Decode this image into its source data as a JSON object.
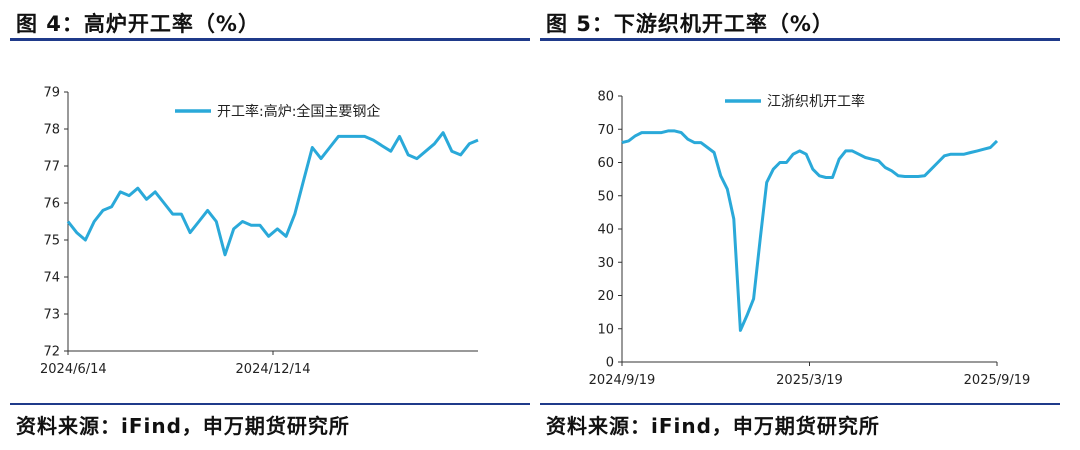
{
  "left": {
    "figure_title": "图 4：高炉开工率（%）",
    "source": "资料来源：iFind，申万期货研究所",
    "chart_data": {
      "type": "line",
      "title": "",
      "xlabel": "",
      "ylabel": "",
      "ylim": [
        72,
        79
      ],
      "y_ticks": [
        72,
        73,
        74,
        75,
        76,
        77,
        78,
        79
      ],
      "x_ticks": [
        "2024/6/14",
        "2024/12/14"
      ],
      "legend_position": "top-center",
      "grid": false,
      "series": [
        {
          "name": "开工率:高炉:全国主要钢企",
          "color": "#2aa9d9",
          "values": [
            75.5,
            75.2,
            75.0,
            75.5,
            75.8,
            75.9,
            76.3,
            76.2,
            76.4,
            76.1,
            76.3,
            76.0,
            75.7,
            75.7,
            75.2,
            75.5,
            75.8,
            75.5,
            74.6,
            75.3,
            75.5,
            75.4,
            75.4,
            75.1,
            75.3,
            75.1,
            75.7,
            76.6,
            77.5,
            77.2,
            77.5,
            77.8,
            77.8,
            77.8,
            77.8,
            77.7,
            77.55,
            77.4,
            77.8,
            77.3,
            77.2,
            77.4,
            77.6,
            77.9,
            77.4,
            77.3,
            77.6,
            77.7
          ]
        }
      ]
    }
  },
  "right": {
    "figure_title": "图 5：下游织机开工率（%）",
    "source": "资料来源：iFind，申万期货研究所",
    "chart_data": {
      "type": "line",
      "title": "",
      "xlabel": "",
      "ylabel": "",
      "ylim": [
        0,
        80
      ],
      "y_ticks": [
        0,
        10,
        20,
        30,
        40,
        50,
        60,
        70,
        80
      ],
      "x_ticks": [
        "2024/9/19",
        "2025/3/19",
        "2025/9/19"
      ],
      "legend_position": "top-center",
      "grid": false,
      "series": [
        {
          "name": "江浙织机开工率",
          "color": "#2aa9d9",
          "values": [
            66,
            66.5,
            68,
            69,
            69,
            69,
            69,
            69.5,
            69.5,
            69,
            67,
            66,
            66,
            64.5,
            63,
            56,
            52,
            43,
            9.5,
            14,
            19,
            37,
            54,
            58,
            60,
            60,
            62.5,
            63.5,
            62.5,
            58,
            56,
            55.5,
            55.5,
            61,
            63.5,
            63.5,
            62.5,
            61.5,
            61,
            60.5,
            58.5,
            57.5,
            56,
            55.8,
            55.8,
            55.8,
            56,
            58,
            60,
            62,
            62.5,
            62.5,
            62.5,
            63,
            63.5,
            64,
            64.5,
            66.5
          ]
        }
      ]
    }
  }
}
